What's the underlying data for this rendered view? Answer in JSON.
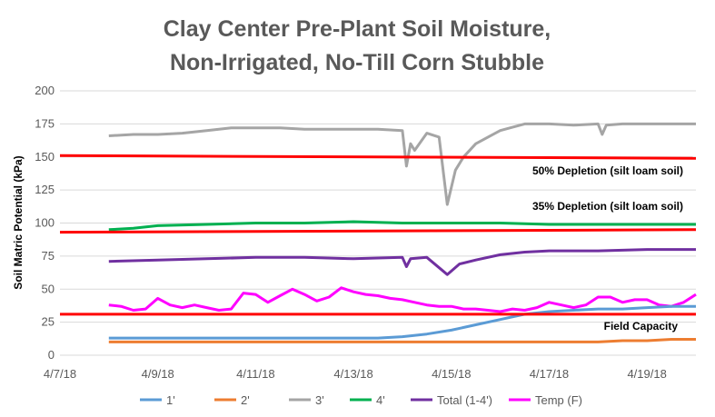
{
  "chart_data": {
    "type": "line",
    "title": [
      "Clay Center Pre-Plant Soil Moisture,",
      "Non-Irrigated, No-Till Corn Stubble"
    ],
    "ylabel": "Soil Matric Potential (kPa)",
    "xlabel": "",
    "ylim": [
      0,
      200
    ],
    "yticks": [
      0,
      25,
      50,
      75,
      100,
      125,
      150,
      175,
      200
    ],
    "xlim": [
      "2018-04-07",
      "2018-04-20"
    ],
    "xtick_labels": [
      "4/7/18",
      "4/9/18",
      "4/11/18",
      "4/13/18",
      "4/15/18",
      "4/17/18",
      "4/19/18"
    ],
    "grid": true,
    "legend_position": "bottom",
    "series": [
      {
        "name": "1'",
        "color": "#5b9bd5",
        "x": [
          "2018-04-08 00:00",
          "2018-04-08 12:00",
          "2018-04-09 00:00",
          "2018-04-10 00:00",
          "2018-04-11 00:00",
          "2018-04-12 00:00",
          "2018-04-13 00:00",
          "2018-04-13 12:00",
          "2018-04-14 00:00",
          "2018-04-14 12:00",
          "2018-04-15 00:00",
          "2018-04-15 12:00",
          "2018-04-16 00:00",
          "2018-04-16 12:00",
          "2018-04-17 00:00",
          "2018-04-17 12:00",
          "2018-04-18 00:00",
          "2018-04-18 12:00",
          "2018-04-19 00:00",
          "2018-04-19 12:00",
          "2018-04-20 00:00"
        ],
        "values": [
          13,
          13,
          13,
          13,
          13,
          13,
          13,
          13,
          14,
          16,
          19,
          23,
          27,
          31,
          33,
          34,
          35,
          35,
          36,
          37,
          37
        ]
      },
      {
        "name": "2'",
        "color": "#ed7d31",
        "x": [
          "2018-04-08 00:00",
          "2018-04-09 00:00",
          "2018-04-10 00:00",
          "2018-04-11 00:00",
          "2018-04-12 00:00",
          "2018-04-13 00:00",
          "2018-04-14 00:00",
          "2018-04-15 00:00",
          "2018-04-16 00:00",
          "2018-04-17 00:00",
          "2018-04-18 00:00",
          "2018-04-18 12:00",
          "2018-04-19 00:00",
          "2018-04-19 12:00",
          "2018-04-20 00:00"
        ],
        "values": [
          10,
          10,
          10,
          10,
          10,
          10,
          10,
          10,
          10,
          10,
          10,
          11,
          11,
          12,
          12
        ]
      },
      {
        "name": "3'",
        "color": "#a5a5a5",
        "x": [
          "2018-04-08 00:00",
          "2018-04-08 12:00",
          "2018-04-09 00:00",
          "2018-04-09 12:00",
          "2018-04-10 00:00",
          "2018-04-10 12:00",
          "2018-04-11 00:00",
          "2018-04-11 12:00",
          "2018-04-12 00:00",
          "2018-04-12 12:00",
          "2018-04-13 00:00",
          "2018-04-13 12:00",
          "2018-04-14 00:00",
          "2018-04-14 02:00",
          "2018-04-14 04:00",
          "2018-04-14 06:00",
          "2018-04-14 12:00",
          "2018-04-14 18:00",
          "2018-04-14 22:00",
          "2018-04-15 02:00",
          "2018-04-15 06:00",
          "2018-04-15 12:00",
          "2018-04-16 00:00",
          "2018-04-16 12:00",
          "2018-04-17 00:00",
          "2018-04-17 12:00",
          "2018-04-18 00:00",
          "2018-04-18 02:00",
          "2018-04-18 04:00",
          "2018-04-18 12:00",
          "2018-04-19 00:00",
          "2018-04-19 12:00",
          "2018-04-20 00:00"
        ],
        "values": [
          166,
          167,
          167,
          168,
          170,
          172,
          172,
          172,
          171,
          171,
          171,
          171,
          170,
          143,
          160,
          155,
          168,
          165,
          114,
          140,
          150,
          160,
          170,
          175,
          175,
          174,
          175,
          167,
          174,
          175,
          175,
          175,
          175
        ]
      },
      {
        "name": "4'",
        "color": "#00b050",
        "x": [
          "2018-04-08 00:00",
          "2018-04-08 12:00",
          "2018-04-09 00:00",
          "2018-04-10 00:00",
          "2018-04-11 00:00",
          "2018-04-12 00:00",
          "2018-04-13 00:00",
          "2018-04-14 00:00",
          "2018-04-15 00:00",
          "2018-04-16 00:00",
          "2018-04-17 00:00",
          "2018-04-18 00:00",
          "2018-04-19 00:00",
          "2018-04-20 00:00"
        ],
        "values": [
          95,
          96,
          98,
          99,
          100,
          100,
          101,
          100,
          100,
          100,
          99,
          99,
          99,
          99
        ]
      },
      {
        "name": "Total (1-4')",
        "color": "#7030a0",
        "x": [
          "2018-04-08 00:00",
          "2018-04-09 00:00",
          "2018-04-10 00:00",
          "2018-04-11 00:00",
          "2018-04-12 00:00",
          "2018-04-13 00:00",
          "2018-04-14 00:00",
          "2018-04-14 02:00",
          "2018-04-14 04:00",
          "2018-04-14 12:00",
          "2018-04-14 22:00",
          "2018-04-15 04:00",
          "2018-04-15 12:00",
          "2018-04-16 00:00",
          "2018-04-16 12:00",
          "2018-04-17 00:00",
          "2018-04-18 00:00",
          "2018-04-19 00:00",
          "2018-04-20 00:00"
        ],
        "values": [
          71,
          72,
          73,
          74,
          74,
          73,
          74,
          67,
          73,
          74,
          61,
          69,
          72,
          76,
          78,
          79,
          79,
          80,
          80
        ]
      },
      {
        "name": "Temp (F)",
        "color": "#ff00ff",
        "x": [
          "2018-04-08 00:00",
          "2018-04-08 06:00",
          "2018-04-08 12:00",
          "2018-04-08 18:00",
          "2018-04-09 00:00",
          "2018-04-09 06:00",
          "2018-04-09 12:00",
          "2018-04-09 18:00",
          "2018-04-10 00:00",
          "2018-04-10 06:00",
          "2018-04-10 12:00",
          "2018-04-10 18:00",
          "2018-04-11 00:00",
          "2018-04-11 06:00",
          "2018-04-11 12:00",
          "2018-04-11 18:00",
          "2018-04-12 00:00",
          "2018-04-12 06:00",
          "2018-04-12 12:00",
          "2018-04-12 18:00",
          "2018-04-13 00:00",
          "2018-04-13 06:00",
          "2018-04-13 12:00",
          "2018-04-13 18:00",
          "2018-04-14 00:00",
          "2018-04-14 06:00",
          "2018-04-14 12:00",
          "2018-04-14 18:00",
          "2018-04-15 00:00",
          "2018-04-15 06:00",
          "2018-04-15 12:00",
          "2018-04-15 18:00",
          "2018-04-16 00:00",
          "2018-04-16 06:00",
          "2018-04-16 12:00",
          "2018-04-16 18:00",
          "2018-04-17 00:00",
          "2018-04-17 06:00",
          "2018-04-17 12:00",
          "2018-04-17 18:00",
          "2018-04-18 00:00",
          "2018-04-18 06:00",
          "2018-04-18 12:00",
          "2018-04-18 18:00",
          "2018-04-19 00:00",
          "2018-04-19 06:00",
          "2018-04-19 12:00",
          "2018-04-19 18:00",
          "2018-04-20 00:00"
        ],
        "values": [
          38,
          37,
          34,
          35,
          43,
          38,
          36,
          38,
          36,
          34,
          35,
          47,
          46,
          40,
          45,
          50,
          46,
          41,
          44,
          51,
          48,
          46,
          45,
          43,
          42,
          40,
          38,
          37,
          37,
          35,
          35,
          34,
          33,
          35,
          34,
          36,
          40,
          38,
          36,
          38,
          44,
          44,
          40,
          42,
          42,
          38,
          37,
          40,
          46
        ]
      }
    ],
    "reference_lines": [
      {
        "label": "50% Depletion (silt loam soil)",
        "color": "#ff0000",
        "y_start": 151,
        "y_end": 149
      },
      {
        "label": "35% Depletion (silt loam soil)",
        "color": "#ff0000",
        "y_start": 93,
        "y_end": 95
      },
      {
        "label": "Field Capacity",
        "color": "#ff0000",
        "y_start": 31,
        "y_end": 31
      }
    ]
  }
}
